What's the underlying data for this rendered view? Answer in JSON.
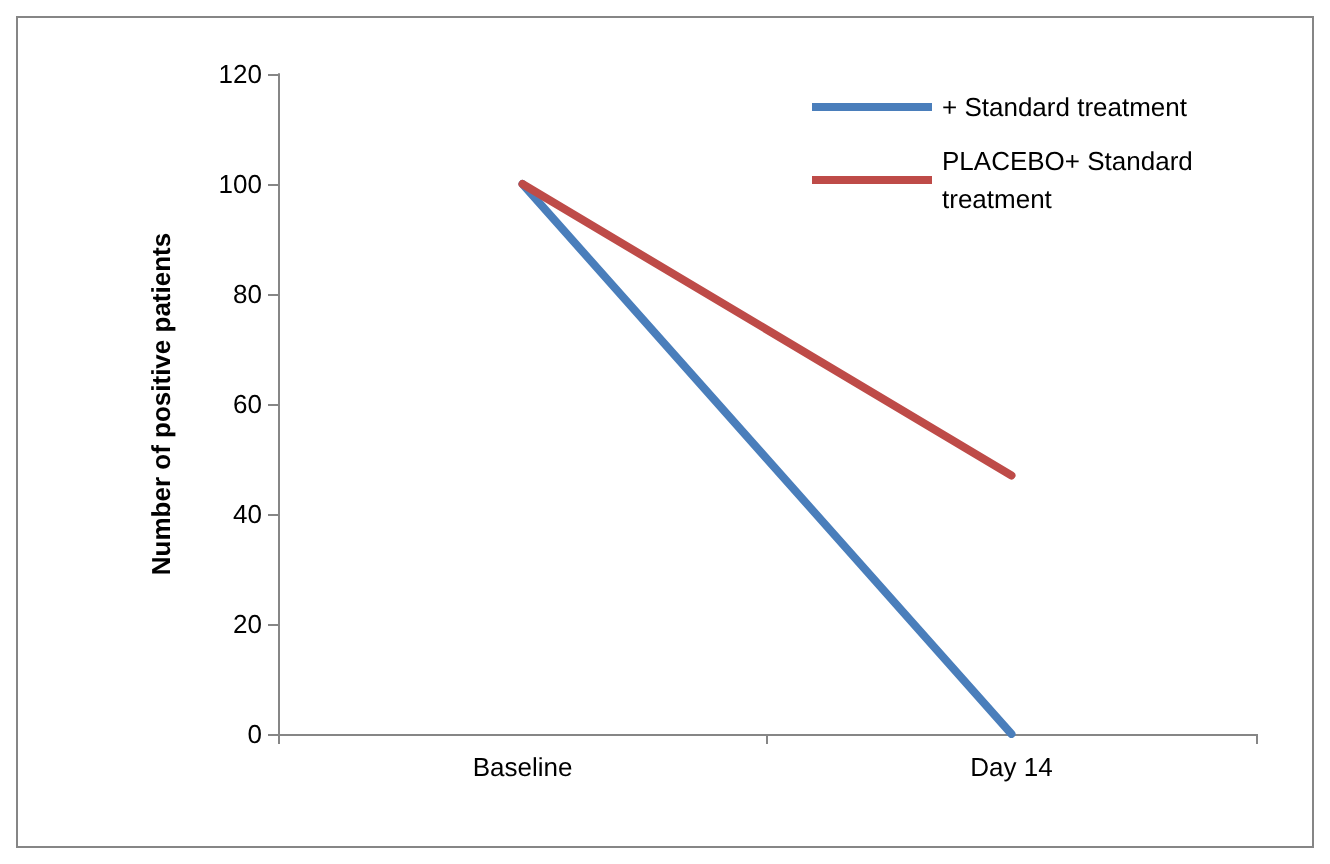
{
  "chart_data": {
    "type": "line",
    "ylabel": "Number of positive patients",
    "categories": [
      "Baseline",
      "Day 14"
    ],
    "series": [
      {
        "name": "+ Standard treatment",
        "color": "#4a7ebb",
        "values": [
          100,
          0
        ]
      },
      {
        "name": "PLACEBO+ Standard treatment",
        "color": "#be4b48",
        "values": [
          100,
          47
        ]
      }
    ],
    "ylim": [
      0,
      120
    ],
    "yticks": [
      0,
      20,
      40,
      60,
      80,
      100,
      120
    ],
    "grid": false,
    "legend": "top right",
    "marker": "none",
    "line_style": "solid"
  }
}
